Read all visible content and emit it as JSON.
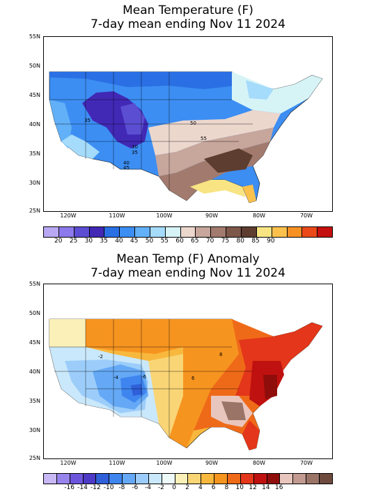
{
  "panel1": {
    "title_line1": "Mean Temperature (F)",
    "title_line2": "7-day mean ending Nov 11 2024",
    "lat_labels": [
      "55N",
      "50N",
      "45N",
      "40N",
      "35N",
      "30N",
      "25N"
    ],
    "lon_labels": [
      "120W",
      "110W",
      "100W",
      "90W",
      "80W",
      "70W"
    ],
    "contour_labels": [
      "35",
      "50",
      "55",
      "30",
      "35",
      "40",
      "45"
    ],
    "colorbar_colors": [
      "#b9a9f4",
      "#8c79ec",
      "#5b4ed2",
      "#4129b6",
      "#2a6fe3",
      "#3c8ef3",
      "#62b0f7",
      "#a5dbfb",
      "#d6f4f6",
      "#ecd7cd",
      "#c7a69b",
      "#a27b6e",
      "#7d5749",
      "#5e3d31",
      "#f8e483",
      "#fbc14d",
      "#f79124",
      "#ea4919",
      "#c4110f"
    ],
    "colorbar_labels": [
      "20",
      "25",
      "30",
      "35",
      "40",
      "45",
      "50",
      "55",
      "60",
      "65",
      "70",
      "75",
      "80",
      "85",
      "90"
    ]
  },
  "panel2": {
    "title_line1": "Mean Temp (F) Anomaly",
    "title_line2": "7-day mean ending Nov 11 2024",
    "lat_labels": [
      "55N",
      "50N",
      "45N",
      "40N",
      "35N",
      "30N",
      "25N"
    ],
    "lon_labels": [
      "120W",
      "110W",
      "100W",
      "90W",
      "80W",
      "70W"
    ],
    "contour_labels": [
      "-2",
      "-4",
      "-6",
      "6",
      "8"
    ],
    "colorbar_colors": [
      "#c8b8f6",
      "#9884ed",
      "#6c55dc",
      "#4d3ac6",
      "#2f5fd9",
      "#3f85ef",
      "#65a9f6",
      "#9ccdfa",
      "#cae8fb",
      "#eefaf8",
      "#fbf1b8",
      "#f9d576",
      "#f8b83d",
      "#f69420",
      "#ef6a18",
      "#e3361a",
      "#bf110f",
      "#8f0d0a",
      "#e9c6bd",
      "#c39a90",
      "#9b7468",
      "#6e4b3e"
    ],
    "colorbar_labels": [
      "-16",
      "-14",
      "-12",
      "-10",
      "-8",
      "-6",
      "-4",
      "-2",
      "0",
      "2",
      "4",
      "6",
      "8",
      "10",
      "12",
      "14",
      "16"
    ]
  }
}
